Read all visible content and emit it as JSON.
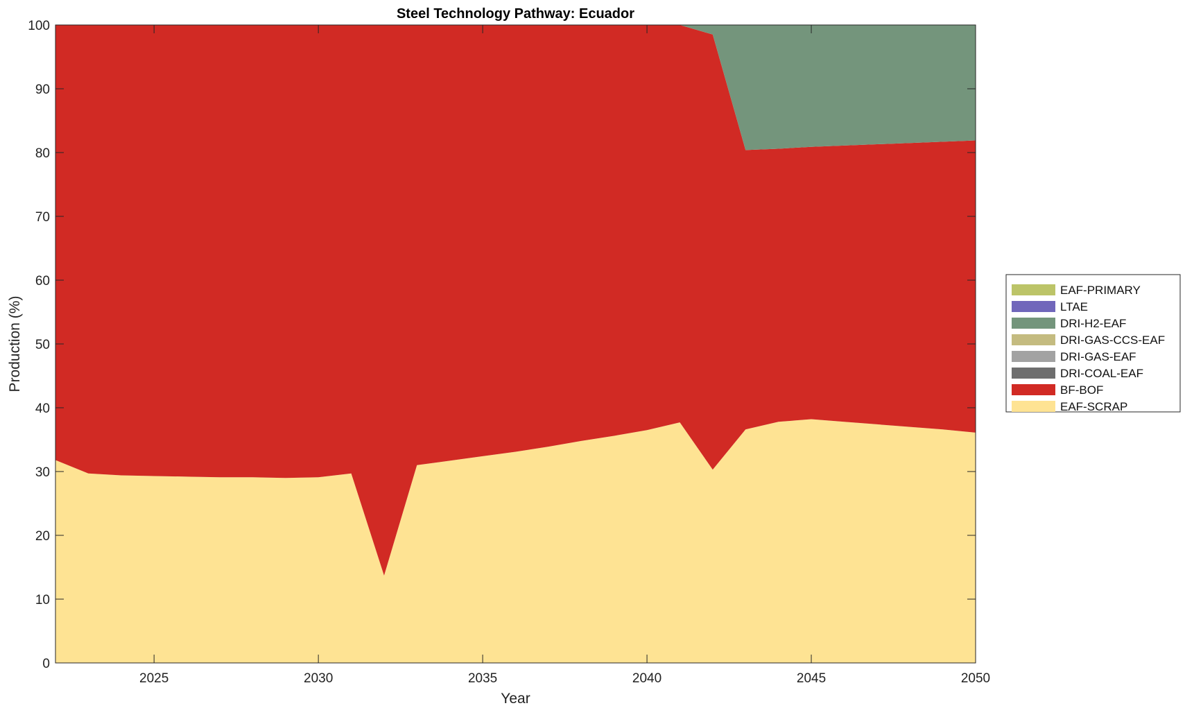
{
  "chart_data": {
    "type": "area",
    "stacked": true,
    "title": "Steel Technology Pathway: Ecuador",
    "xlabel": "Year",
    "ylabel": "Production (%)",
    "xlim": [
      2022,
      2050
    ],
    "ylim": [
      0,
      100
    ],
    "xticks": [
      2025,
      2030,
      2035,
      2040,
      2045,
      2050
    ],
    "yticks": [
      0,
      10,
      20,
      30,
      40,
      50,
      60,
      70,
      80,
      90,
      100
    ],
    "grid": false,
    "legend_position": "right",
    "x": [
      2022,
      2023,
      2024,
      2025,
      2026,
      2027,
      2028,
      2029,
      2030,
      2031,
      2032,
      2033,
      2034,
      2035,
      2036,
      2037,
      2038,
      2039,
      2040,
      2041,
      2042,
      2043,
      2044,
      2045,
      2046,
      2047,
      2048,
      2049,
      2050
    ],
    "series": [
      {
        "name": "EAF-SCRAP",
        "color": "#FEE393",
        "values": [
          31.8,
          29.7,
          29.4,
          29.3,
          29.2,
          29.1,
          29.1,
          29.0,
          29.1,
          29.7,
          13.7,
          31.0,
          31.7,
          32.4,
          33.1,
          33.9,
          34.8,
          35.6,
          36.5,
          37.7,
          30.3,
          36.6,
          37.8,
          38.2,
          37.8,
          37.4,
          37.0,
          36.6,
          36.1
        ]
      },
      {
        "name": "BF-BOF",
        "color": "#D12A24",
        "values": [
          68.2,
          70.3,
          70.6,
          70.7,
          70.8,
          70.9,
          70.9,
          71.0,
          70.9,
          70.3,
          86.3,
          69.0,
          68.3,
          67.6,
          66.9,
          66.1,
          65.2,
          64.4,
          63.5,
          62.3,
          68.2,
          43.8,
          42.8,
          42.7,
          43.3,
          43.9,
          44.5,
          45.1,
          45.8
        ]
      },
      {
        "name": "DRI-COAL-EAF",
        "color": "#6E6E6E",
        "values": [
          0,
          0,
          0,
          0,
          0,
          0,
          0,
          0,
          0,
          0,
          0,
          0,
          0,
          0,
          0,
          0,
          0,
          0,
          0,
          0,
          0,
          0,
          0,
          0,
          0,
          0,
          0,
          0,
          0
        ]
      },
      {
        "name": "DRI-GAS-EAF",
        "color": "#A2A2A2",
        "values": [
          0,
          0,
          0,
          0,
          0,
          0,
          0,
          0,
          0,
          0,
          0,
          0,
          0,
          0,
          0,
          0,
          0,
          0,
          0,
          0,
          0,
          0,
          0,
          0,
          0,
          0,
          0,
          0,
          0
        ]
      },
      {
        "name": "DRI-GAS-CCS-EAF",
        "color": "#C4BB80",
        "values": [
          0,
          0,
          0,
          0,
          0,
          0,
          0,
          0,
          0,
          0,
          0,
          0,
          0,
          0,
          0,
          0,
          0,
          0,
          0,
          0,
          0,
          0,
          0,
          0,
          0,
          0,
          0,
          0,
          0
        ]
      },
      {
        "name": "DRI-H2-EAF",
        "color": "#74957C",
        "values": [
          0,
          0,
          0,
          0,
          0,
          0,
          0,
          0,
          0,
          0,
          0,
          0,
          0,
          0,
          0,
          0,
          0,
          0,
          0,
          0,
          1.5,
          19.6,
          19.4,
          19.1,
          18.9,
          18.7,
          18.5,
          18.3,
          18.1
        ]
      },
      {
        "name": "LTAE",
        "color": "#7167BB",
        "values": [
          0,
          0,
          0,
          0,
          0,
          0,
          0,
          0,
          0,
          0,
          0,
          0,
          0,
          0,
          0,
          0,
          0,
          0,
          0,
          0,
          0,
          0,
          0,
          0,
          0,
          0,
          0,
          0,
          0
        ]
      },
      {
        "name": "EAF-PRIMARY",
        "color": "#BCC468",
        "values": [
          0,
          0,
          0,
          0,
          0,
          0,
          0,
          0,
          0,
          0,
          0,
          0,
          0,
          0,
          0,
          0,
          0,
          0,
          0,
          0,
          0,
          0,
          0,
          0,
          0,
          0,
          0,
          0,
          0
        ]
      }
    ],
    "legend_order": [
      "EAF-PRIMARY",
      "LTAE",
      "DRI-H2-EAF",
      "DRI-GAS-CCS-EAF",
      "DRI-GAS-EAF",
      "DRI-COAL-EAF",
      "BF-BOF",
      "EAF-SCRAP"
    ]
  }
}
